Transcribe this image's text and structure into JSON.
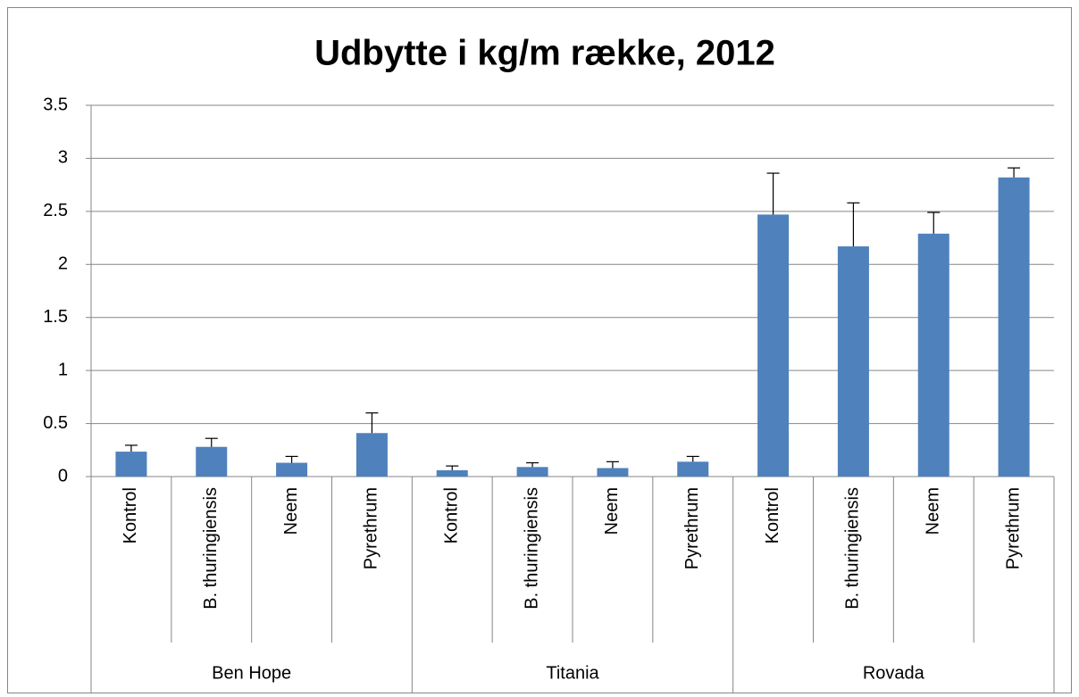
{
  "chart_data": {
    "type": "bar",
    "title": "Udbytte i kg/m række, 2012",
    "categories": [
      "Kontrol",
      "B. thuringiensis",
      "Neem",
      "Pyrethrum",
      "Kontrol",
      "B. thuringiensis",
      "Neem",
      "Pyrethrum",
      "Kontrol",
      "B. thuringiensis",
      "Neem",
      "Pyrethrum"
    ],
    "groups": [
      "Ben Hope",
      "Titania",
      "Rovada"
    ],
    "values": [
      0.235,
      0.28,
      0.13,
      0.41,
      0.06,
      0.09,
      0.08,
      0.14,
      2.47,
      2.17,
      2.29,
      2.82
    ],
    "errors": [
      0.06,
      0.08,
      0.06,
      0.19,
      0.04,
      0.04,
      0.06,
      0.05,
      0.39,
      0.41,
      0.2,
      0.09
    ],
    "color": "#4f81bd",
    "ylim": [
      0,
      3.5
    ],
    "yticks": [
      0,
      0.5,
      1,
      1.5,
      2,
      2.5,
      3,
      3.5
    ],
    "grid": true
  }
}
